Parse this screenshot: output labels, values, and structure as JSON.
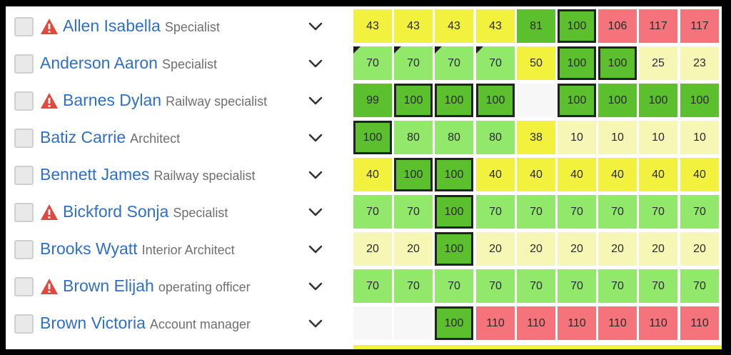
{
  "rows": [
    {
      "name": "Allen Isabella",
      "role": "Specialist",
      "warning": true,
      "cells": [
        {
          "v": "43",
          "c": "yellow"
        },
        {
          "v": "43",
          "c": "yellow"
        },
        {
          "v": "43",
          "c": "yellow"
        },
        {
          "v": "43",
          "c": "yellow"
        },
        {
          "v": "81",
          "c": "dark"
        },
        {
          "v": "100",
          "c": "dark",
          "boxed": true
        },
        {
          "v": "106",
          "c": "red"
        },
        {
          "v": "117",
          "c": "red"
        },
        {
          "v": "117",
          "c": "red"
        }
      ]
    },
    {
      "name": "Anderson Aaron",
      "role": "Specialist",
      "warning": false,
      "cells": [
        {
          "v": "70",
          "c": "light",
          "corner": true
        },
        {
          "v": "70",
          "c": "light",
          "corner": true
        },
        {
          "v": "70",
          "c": "light",
          "corner": true
        },
        {
          "v": "70",
          "c": "light",
          "corner": true
        },
        {
          "v": "50",
          "c": "yellow"
        },
        {
          "v": "100",
          "c": "dark",
          "boxed": true
        },
        {
          "v": "100",
          "c": "dark",
          "boxed": true
        },
        {
          "v": "25",
          "c": "pale"
        },
        {
          "v": "23",
          "c": "pale"
        }
      ]
    },
    {
      "name": "Barnes Dylan",
      "role": "Railway specialist",
      "warning": true,
      "cells": [
        {
          "v": "99",
          "c": "dark"
        },
        {
          "v": "100",
          "c": "dark",
          "boxed": true
        },
        {
          "v": "100",
          "c": "dark",
          "boxed": true
        },
        {
          "v": "100",
          "c": "dark",
          "boxed": true
        },
        {
          "v": "",
          "c": "empty"
        },
        {
          "v": "100",
          "c": "dark",
          "boxed": true
        },
        {
          "v": "100",
          "c": "dark"
        },
        {
          "v": "100",
          "c": "dark"
        },
        {
          "v": "100",
          "c": "dark"
        }
      ]
    },
    {
      "name": "Batiz Carrie",
      "role": "Architect",
      "warning": false,
      "cells": [
        {
          "v": "100",
          "c": "dark",
          "boxed": true
        },
        {
          "v": "80",
          "c": "light"
        },
        {
          "v": "80",
          "c": "light"
        },
        {
          "v": "80",
          "c": "light"
        },
        {
          "v": "38",
          "c": "yellow"
        },
        {
          "v": "10",
          "c": "pale"
        },
        {
          "v": "10",
          "c": "pale"
        },
        {
          "v": "10",
          "c": "pale"
        },
        {
          "v": "10",
          "c": "pale"
        }
      ]
    },
    {
      "name": "Bennett James",
      "role": "Railway specialist",
      "warning": false,
      "cells": [
        {
          "v": "40",
          "c": "yellow"
        },
        {
          "v": "100",
          "c": "dark",
          "boxed": true
        },
        {
          "v": "100",
          "c": "dark",
          "boxed": true
        },
        {
          "v": "40",
          "c": "yellow"
        },
        {
          "v": "40",
          "c": "yellow"
        },
        {
          "v": "40",
          "c": "yellow"
        },
        {
          "v": "40",
          "c": "yellow"
        },
        {
          "v": "40",
          "c": "yellow"
        },
        {
          "v": "40",
          "c": "yellow"
        }
      ]
    },
    {
      "name": "Bickford Sonja",
      "role": "Specialist",
      "warning": true,
      "cells": [
        {
          "v": "70",
          "c": "light"
        },
        {
          "v": "70",
          "c": "light"
        },
        {
          "v": "100",
          "c": "dark",
          "boxed": true
        },
        {
          "v": "70",
          "c": "light"
        },
        {
          "v": "70",
          "c": "light"
        },
        {
          "v": "70",
          "c": "light"
        },
        {
          "v": "70",
          "c": "light"
        },
        {
          "v": "70",
          "c": "light"
        },
        {
          "v": "70",
          "c": "light"
        }
      ]
    },
    {
      "name": "Brooks Wyatt",
      "role": "Interior Architect",
      "warning": false,
      "cells": [
        {
          "v": "20",
          "c": "pale"
        },
        {
          "v": "20",
          "c": "pale"
        },
        {
          "v": "100",
          "c": "dark",
          "boxed": true
        },
        {
          "v": "20",
          "c": "pale"
        },
        {
          "v": "20",
          "c": "pale"
        },
        {
          "v": "20",
          "c": "pale"
        },
        {
          "v": "20",
          "c": "pale"
        },
        {
          "v": "20",
          "c": "pale"
        },
        {
          "v": "20",
          "c": "pale"
        }
      ]
    },
    {
      "name": "Brown Elijah",
      "role": "operating officer",
      "warning": true,
      "cells": [
        {
          "v": "70",
          "c": "light"
        },
        {
          "v": "70",
          "c": "light"
        },
        {
          "v": "70",
          "c": "light"
        },
        {
          "v": "70",
          "c": "light"
        },
        {
          "v": "70",
          "c": "light"
        },
        {
          "v": "70",
          "c": "light"
        },
        {
          "v": "70",
          "c": "light"
        },
        {
          "v": "70",
          "c": "light"
        },
        {
          "v": "70",
          "c": "light"
        }
      ]
    },
    {
      "name": "Brown Victoria",
      "role": "Account manager",
      "warning": false,
      "cells": [
        {
          "v": "",
          "c": "empty"
        },
        {
          "v": "",
          "c": "empty"
        },
        {
          "v": "100",
          "c": "dark",
          "boxed": true
        },
        {
          "v": "110",
          "c": "red"
        },
        {
          "v": "110",
          "c": "red"
        },
        {
          "v": "110",
          "c": "red"
        },
        {
          "v": "110",
          "c": "red"
        },
        {
          "v": "110",
          "c": "red"
        },
        {
          "v": "110",
          "c": "red"
        }
      ]
    }
  ],
  "colors": {
    "yellow": "#f2f23e",
    "light": "#92e86a",
    "dark": "#5cbf2e",
    "red": "#f5747b",
    "pale": "#f6f7b4",
    "empty": "#f7f7f7",
    "name": "#2f6fc6",
    "role": "#6f6f6f",
    "warning": "#e0493b",
    "bottom_strip": "#f2f23e"
  },
  "icons": {
    "warning": "warning-triangle-icon",
    "expand": "chevron-down-icon",
    "select": "checkbox"
  }
}
